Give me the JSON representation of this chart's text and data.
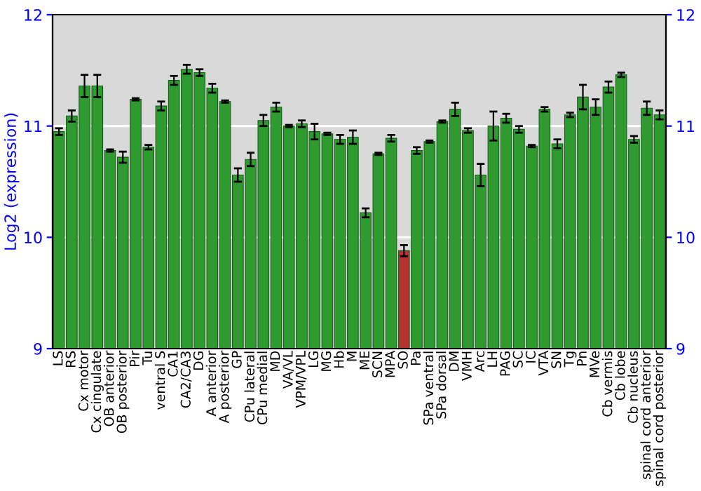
{
  "chart_data": {
    "type": "bar",
    "ylabel": "Log2 (expression)",
    "categories": [
      "LS",
      "RS",
      "Cx motor",
      "Cx cingulate",
      "OB anterior",
      "OB posterior",
      "Pir",
      "Tu",
      "ventral S",
      "CA1",
      "CA2/CA3",
      "DG",
      "A anterior",
      "A posterior",
      "GP",
      "CPu lateral",
      "CPu medial",
      "MD",
      "VA/VL",
      "VPM/VPL",
      "LG",
      "MG",
      "Hb",
      "M",
      "ME",
      "SCN",
      "MPA",
      "SO",
      "Pa",
      "SPa ventral",
      "SPa dorsal",
      "DM",
      "VMH",
      "Arc",
      "LH",
      "PAG",
      "SC",
      "IC",
      "VTA",
      "SN",
      "Tg",
      "Pn",
      "MVe",
      "Cb vermis",
      "Cb lobe",
      "Cb nucleus",
      "spinal cord anterior",
      "spinal cord posterior"
    ],
    "values": [
      10.95,
      11.09,
      11.36,
      11.36,
      10.78,
      10.72,
      11.24,
      10.81,
      11.18,
      11.41,
      11.51,
      11.48,
      11.34,
      11.22,
      10.56,
      10.7,
      11.05,
      11.17,
      11.0,
      11.02,
      10.95,
      10.93,
      10.88,
      10.9,
      10.22,
      10.75,
      10.89,
      9.88,
      10.78,
      10.86,
      11.04,
      11.15,
      10.96,
      10.56,
      11.0,
      11.07,
      10.97,
      10.82,
      11.15,
      10.84,
      11.1,
      11.26,
      11.17,
      11.35,
      11.46,
      10.88,
      11.16,
      11.1
    ],
    "errors": [
      0.03,
      0.05,
      0.1,
      0.1,
      0.01,
      0.05,
      0.01,
      0.02,
      0.04,
      0.04,
      0.04,
      0.03,
      0.04,
      0.01,
      0.06,
      0.06,
      0.05,
      0.04,
      0.01,
      0.03,
      0.07,
      0.01,
      0.04,
      0.06,
      0.04,
      0.01,
      0.03,
      0.05,
      0.03,
      0.01,
      0.01,
      0.06,
      0.02,
      0.1,
      0.13,
      0.04,
      0.03,
      0.01,
      0.02,
      0.04,
      0.02,
      0.11,
      0.07,
      0.05,
      0.02,
      0.03,
      0.06,
      0.04
    ],
    "colors": [
      "#2f9a2f",
      "#2f9a2f",
      "#2f9a2f",
      "#2f9a2f",
      "#2f9a2f",
      "#2f9a2f",
      "#2f9a2f",
      "#2f9a2f",
      "#2f9a2f",
      "#2f9a2f",
      "#2f9a2f",
      "#2f9a2f",
      "#2f9a2f",
      "#2f9a2f",
      "#2f9a2f",
      "#2f9a2f",
      "#2f9a2f",
      "#2f9a2f",
      "#2f9a2f",
      "#2f9a2f",
      "#2f9a2f",
      "#2f9a2f",
      "#2f9a2f",
      "#2f9a2f",
      "#2f9a2f",
      "#2f9a2f",
      "#2f9a2f",
      "#b33333",
      "#2f9a2f",
      "#2f9a2f",
      "#2f9a2f",
      "#2f9a2f",
      "#2f9a2f",
      "#2f9a2f",
      "#2f9a2f",
      "#2f9a2f",
      "#2f9a2f",
      "#2f9a2f",
      "#2f9a2f",
      "#2f9a2f",
      "#2f9a2f",
      "#2f9a2f",
      "#2f9a2f",
      "#2f9a2f",
      "#2f9a2f",
      "#2f9a2f",
      "#2f9a2f",
      "#2f9a2f"
    ],
    "ylim": [
      9,
      12
    ],
    "yticks": [
      9,
      10,
      11,
      12
    ],
    "y2lim": [
      9,
      12
    ],
    "y2ticks": [
      9,
      10,
      11,
      12
    ],
    "grid": "y"
  }
}
